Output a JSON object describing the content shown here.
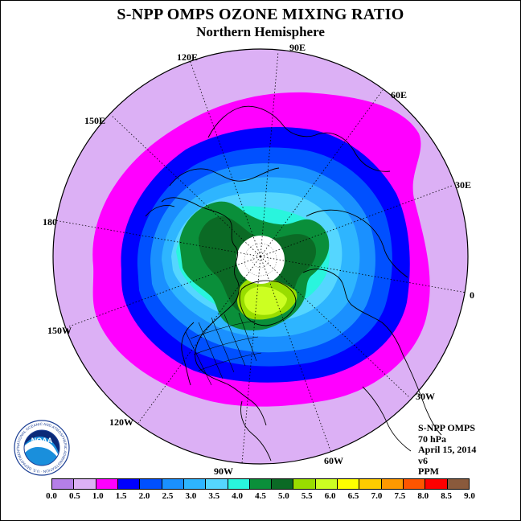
{
  "header": {
    "title": "S-NPP OMPS OZONE MIXING RATIO",
    "subtitle": "Northern Hemisphere"
  },
  "map": {
    "longitude_labels": [
      "90E",
      "60E",
      "30E",
      "0",
      "30W",
      "60W",
      "90W",
      "120W",
      "150W",
      "180",
      "150E",
      "120E"
    ]
  },
  "info": {
    "instrument": "S-NPP OMPS",
    "level": "70 hPa",
    "date": "April 15, 2014",
    "version": "v6",
    "units": "PPM"
  },
  "legend": {
    "ticks": [
      "0.0",
      "0.5",
      "1.0",
      "1.5",
      "2.0",
      "2.5",
      "3.0",
      "3.5",
      "4.0",
      "4.5",
      "5.0",
      "5.5",
      "6.0",
      "6.5",
      "7.0",
      "7.5",
      "8.0",
      "8.5",
      "9.0"
    ],
    "colors": [
      "#b57fe8",
      "#dcb0f5",
      "#ff00ff",
      "#0000ff",
      "#0050ff",
      "#1a90ff",
      "#2eb5ff",
      "#55d6ff",
      "#29f5dd",
      "#0a8f3a",
      "#0b6a25",
      "#99dd00",
      "#ccff22",
      "#ffff00",
      "#ffcc00",
      "#ff9900",
      "#ff5500",
      "#ff0000",
      "#8a5a3c"
    ]
  },
  "logo": {
    "text": "NOAA",
    "ring_text": "NATIONAL OCEANIC AND ATMOSPHERIC ADMINISTRATION · U.S. DEPARTMENT OF COMMERCE"
  }
}
